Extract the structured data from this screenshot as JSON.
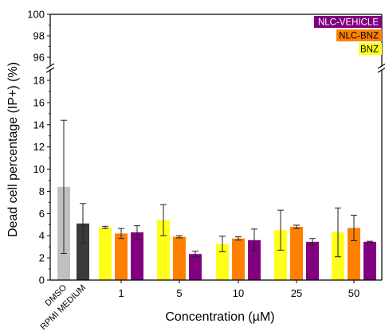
{
  "chart_data": {
    "type": "bar",
    "ylabel": "Dead cell percentage (IP+) (%)",
    "xlabel": "Concentration (µM)",
    "axis_break": {
      "lower_range": [
        0,
        19
      ],
      "upper_range": [
        95,
        100
      ]
    },
    "y_ticks_lower": [
      0,
      2,
      4,
      6,
      8,
      10,
      12,
      14,
      16,
      18
    ],
    "y_ticks_upper": [
      96,
      98,
      100
    ],
    "controls": [
      {
        "label": "DMSO",
        "value": 8.4,
        "error": 6.0,
        "color": "#c0c0c0"
      },
      {
        "label": "RPMI MEDIUM",
        "value": 5.1,
        "error": 1.8,
        "color": "#3a3a3a"
      }
    ],
    "categories": [
      "1",
      "5",
      "10",
      "25",
      "50"
    ],
    "series": [
      {
        "name": "BNZ",
        "color": "#ffff1a",
        "values": [
          4.75,
          5.4,
          3.25,
          4.5,
          4.3
        ],
        "errors": [
          0.1,
          1.4,
          0.7,
          1.8,
          2.2
        ]
      },
      {
        "name": "NLC-BNZ",
        "color": "#ff8000",
        "values": [
          4.2,
          3.9,
          3.75,
          4.8,
          4.7
        ],
        "errors": [
          0.45,
          0.1,
          0.15,
          0.15,
          1.15
        ]
      },
      {
        "name": "NLC-VEHICLE",
        "color": "#800080",
        "values": [
          4.3,
          2.35,
          3.6,
          3.45,
          3.45
        ],
        "errors": [
          0.6,
          0.25,
          1.0,
          0.3,
          0.05
        ]
      }
    ],
    "legend_position": "top-right"
  }
}
